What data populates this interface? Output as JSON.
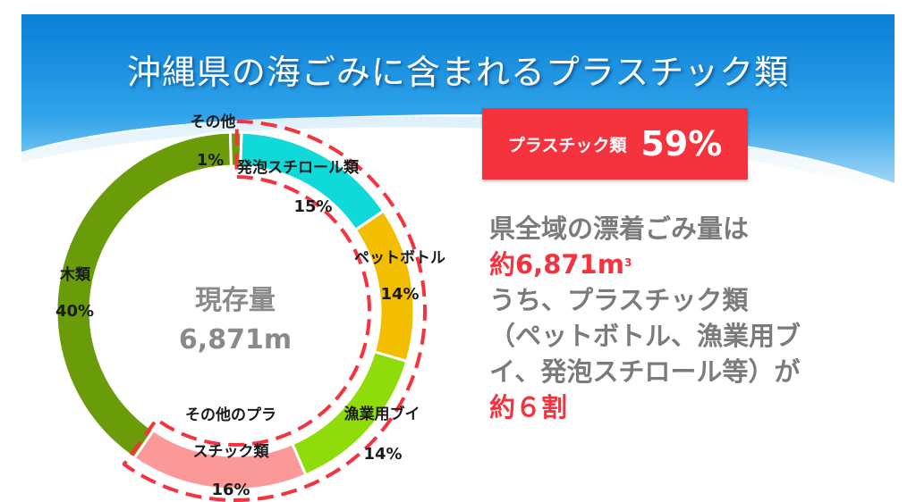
{
  "slide": {
    "title": "沖縄県の海ごみに含まれるプラスチック類",
    "highlight": {
      "label": "プラスチック類",
      "value": "59%"
    },
    "info": {
      "line1": "県全域の漂着ごみ量は",
      "line2_value": "約6,871m",
      "line2_sup": "3",
      "line3": "うち、プラスチック類",
      "line4": "（ペットボトル、漁業用ブ",
      "line5": "イ、発泡スチロール等）が",
      "line6": "約６割"
    },
    "colors": {
      "header": "#1b8fe0",
      "accent_red": "#f5333f",
      "text_gray": "#7b7b7b"
    }
  },
  "chart_data": {
    "type": "pie",
    "donut": true,
    "center_label": [
      "現存量",
      "6,871m"
    ],
    "segments": [
      {
        "label": "発泡スチロール類",
        "value": 15,
        "value_label": "15%",
        "color": "#0fd9d9"
      },
      {
        "label": "ペットボトル",
        "value": 14,
        "value_label": "14%",
        "color": "#f3bd00"
      },
      {
        "label": "漁業用ブイ",
        "value": 14,
        "value_label": "14%",
        "color": "#90dc0a"
      },
      {
        "label": "その他のプラスチック類",
        "value": 16,
        "value_label": "16%",
        "color": "#fb9898"
      },
      {
        "label": "木類",
        "value": 40,
        "value_label": "40%",
        "color": "#6a9c0a"
      },
      {
        "label": "その他",
        "value": 1,
        "value_label": "1%",
        "color": "#6a9c0a"
      }
    ],
    "highlighted_segments": [
      "発泡スチロール類",
      "ペットボトル",
      "漁業用ブイ",
      "その他のプラスチック類"
    ],
    "legend": "none"
  }
}
